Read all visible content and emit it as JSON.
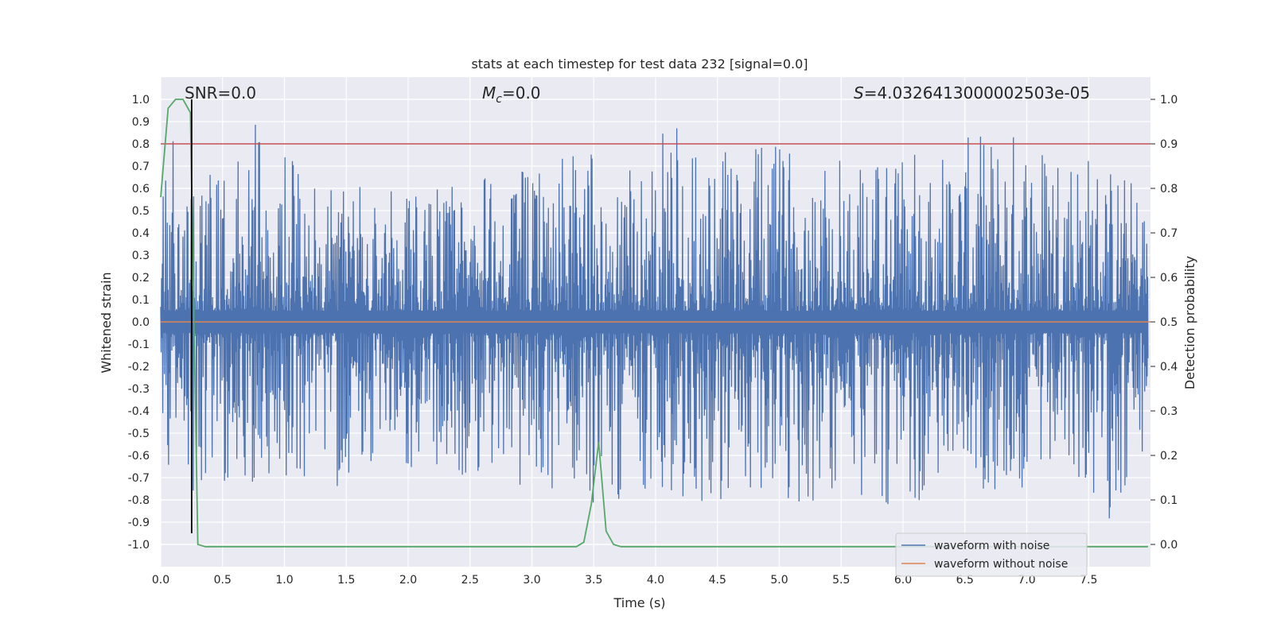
{
  "chart_data": {
    "type": "line",
    "title": "stats at each timestep for test data 232 [signal=0.0]",
    "xlabel": "Time (s)",
    "ylabel": "Whitened strain",
    "y2label": "Detection probability",
    "xlim": [
      0.0,
      8.0
    ],
    "ylim": [
      -1.1,
      1.1
    ],
    "y2lim": [
      -0.05,
      1.05
    ],
    "x_ticks": [
      0.0,
      0.5,
      1.0,
      1.5,
      2.0,
      2.5,
      3.0,
      3.5,
      4.0,
      4.5,
      5.0,
      5.5,
      6.0,
      6.5,
      7.0,
      7.5
    ],
    "x_tick_labels": [
      "0.0",
      "0.5",
      "1.0",
      "1.5",
      "2.0",
      "2.5",
      "3.0",
      "3.5",
      "4.0",
      "4.5",
      "5.0",
      "5.5",
      "6.0",
      "6.5",
      "7.0",
      "7.5"
    ],
    "y_ticks": [
      1.0,
      0.9,
      0.8,
      0.7,
      0.6,
      0.5,
      0.4,
      0.3,
      0.2,
      0.1,
      0.0,
      -0.1,
      -0.2,
      -0.3,
      -0.4,
      -0.5,
      -0.6,
      -0.7,
      -0.8,
      -0.9,
      -1.0
    ],
    "y_tick_labels": [
      "1.0",
      "0.9",
      "0.8",
      "0.7",
      "0.6",
      "0.5",
      "0.4",
      "0.3",
      "0.2",
      "0.1",
      "0.0",
      "-0.1",
      "-0.2",
      "-0.3",
      "-0.4",
      "-0.5",
      "-0.6",
      "-0.7",
      "-0.8",
      "-0.9",
      "-1.0"
    ],
    "y2_ticks": [
      1.0,
      0.9,
      0.8,
      0.7,
      0.6,
      0.5,
      0.4,
      0.3,
      0.2,
      0.1,
      0.0
    ],
    "y2_tick_labels": [
      "1.0",
      "0.9",
      "0.8",
      "0.7",
      "0.6",
      "0.5",
      "0.4",
      "0.3",
      "0.2",
      "0.1",
      "0.0"
    ],
    "grid": true,
    "legend_placement": "lower-right",
    "annotations": {
      "snr": "SNR=0.0",
      "mc_symbol": "M",
      "mc_sub": "c",
      "mc_value": "=0.0",
      "s_symbol": "S",
      "s_value": "=4.0326413000002503e-05"
    },
    "threshold_line_y2": 0.9,
    "marker_line_x": 0.25,
    "noise_envelope": {
      "upper": [
        [
          0.0,
          0.55
        ],
        [
          0.05,
          0.8
        ],
        [
          0.1,
          0.82
        ],
        [
          0.15,
          0.6
        ],
        [
          0.2,
          0.55
        ],
        [
          0.45,
          0.82
        ],
        [
          0.55,
          0.6
        ],
        [
          0.7,
          0.95
        ],
        [
          0.9,
          0.85
        ],
        [
          1.2,
          0.68
        ],
        [
          1.6,
          0.62
        ],
        [
          2.1,
          0.65
        ],
        [
          2.5,
          0.65
        ],
        [
          3.1,
          0.7
        ],
        [
          3.45,
          0.82
        ],
        [
          3.6,
          0.65
        ],
        [
          4.0,
          0.72
        ],
        [
          4.08,
          1.0
        ],
        [
          4.3,
          0.75
        ],
        [
          4.7,
          0.78
        ],
        [
          5.15,
          0.81
        ],
        [
          5.35,
          0.81
        ],
        [
          5.8,
          0.78
        ],
        [
          6.4,
          0.81
        ],
        [
          6.8,
          0.88
        ],
        [
          6.98,
          0.9
        ],
        [
          7.15,
          0.85
        ],
        [
          7.25,
          0.89
        ],
        [
          7.6,
          0.75
        ],
        [
          8.0,
          0.6
        ]
      ],
      "lower": [
        [
          0.0,
          -0.6
        ],
        [
          0.1,
          -0.7
        ],
        [
          0.2,
          -0.8
        ],
        [
          0.35,
          -0.75
        ],
        [
          0.6,
          -0.72
        ],
        [
          0.84,
          -0.73
        ],
        [
          1.2,
          -0.7
        ],
        [
          1.5,
          -0.75
        ],
        [
          2.0,
          -0.68
        ],
        [
          2.6,
          -0.7
        ],
        [
          3.05,
          -0.78
        ],
        [
          3.3,
          -0.72
        ],
        [
          3.65,
          -0.9
        ],
        [
          4.0,
          -0.72
        ],
        [
          4.45,
          -0.91
        ],
        [
          4.7,
          -0.75
        ],
        [
          5.0,
          -0.9
        ],
        [
          5.5,
          -0.75
        ],
        [
          5.67,
          -0.87
        ],
        [
          6.0,
          -0.85
        ],
        [
          6.4,
          -0.7
        ],
        [
          6.7,
          -0.78
        ],
        [
          7.1,
          -0.8
        ],
        [
          7.4,
          -0.7
        ],
        [
          7.58,
          -0.95
        ],
        [
          7.8,
          -0.8
        ],
        [
          8.0,
          -0.65
        ]
      ]
    },
    "series": [
      {
        "name": "waveform with noise",
        "axis": "left",
        "color": "#4c72b0",
        "kind": "noise"
      },
      {
        "name": "waveform without noise",
        "axis": "left",
        "color": "#dd8452",
        "x": [
          0.0,
          8.0
        ],
        "y": [
          0.0,
          0.0
        ]
      },
      {
        "axis": "right",
        "color": "#55a868",
        "x": [
          0.0,
          0.06,
          0.12,
          0.18,
          0.24,
          0.3,
          0.36,
          1.0,
          2.0,
          3.0,
          3.36,
          3.42,
          3.48,
          3.54,
          3.6,
          3.66,
          3.72,
          4.0,
          5.0,
          6.0,
          7.0,
          7.98
        ],
        "y": [
          0.78,
          0.98,
          1.0,
          1.0,
          0.97,
          0.0,
          -0.005,
          -0.005,
          -0.005,
          -0.005,
          -0.005,
          0.005,
          0.09,
          0.23,
          0.03,
          0.0,
          -0.005,
          -0.005,
          -0.005,
          -0.005,
          -0.005,
          -0.005
        ]
      }
    ],
    "colors": {
      "threshold": "#c44e52",
      "marker": "#000000",
      "plot_bg": "#eaeaf2",
      "grid": "#ffffff"
    }
  }
}
